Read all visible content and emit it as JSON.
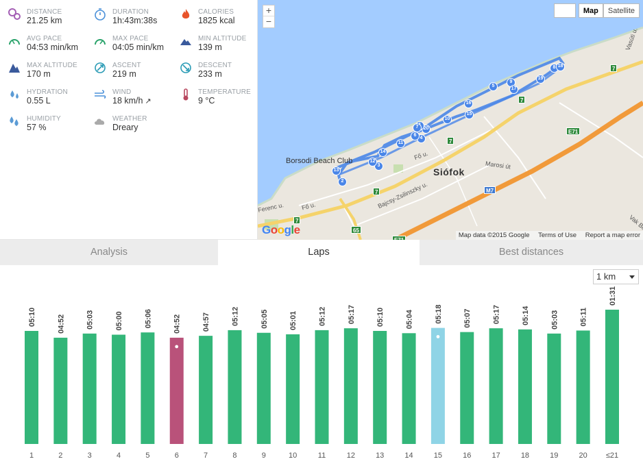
{
  "stats": [
    {
      "label": "DISTANCE",
      "value": "21.25 km",
      "icon": "distance-pin-icon",
      "color": "#a45fb5"
    },
    {
      "label": "DURATION",
      "value": "1h:43m:38s",
      "icon": "stopwatch-icon",
      "color": "#4a90d9"
    },
    {
      "label": "CALORIES",
      "value": "1825 kcal",
      "icon": "flame-icon",
      "color": "#e8542b"
    },
    {
      "label": "AVG PACE",
      "value": "04:53 min/km",
      "icon": "gauge-icon",
      "color": "#2aa36b"
    },
    {
      "label": "MAX PACE",
      "value": "04:05 min/km",
      "icon": "gauge-max-icon",
      "color": "#2aa36b"
    },
    {
      "label": "MIN ALTITUDE",
      "value": "139 m",
      "icon": "mountain-low-icon",
      "color": "#3a5a9c"
    },
    {
      "label": "MAX ALTITUDE",
      "value": "170 m",
      "icon": "mountain-high-icon",
      "color": "#3a5a9c"
    },
    {
      "label": "ASCENT",
      "value": "219 m",
      "icon": "ascent-icon",
      "color": "#2a9bb5"
    },
    {
      "label": "DESCENT",
      "value": "233 m",
      "icon": "descent-icon",
      "color": "#2a9bb5"
    },
    {
      "label": "HYDRATION",
      "value": "0.55 L",
      "icon": "water-drops-icon",
      "color": "#5b9bd5"
    },
    {
      "label": "WIND",
      "value": "18 km/h",
      "icon": "wind-icon",
      "color": "#4a90d9"
    },
    {
      "label": "TEMPERATURE",
      "value": "9 °C",
      "icon": "thermometer-icon",
      "color": "#b8485f"
    },
    {
      "label": "HUMIDITY",
      "value": "57 %",
      "icon": "humidity-drops-icon",
      "color": "#5b9bd5"
    },
    {
      "label": "WEATHER",
      "value": "Dreary",
      "icon": "cloud-icon",
      "color": "#aaaaaa"
    }
  ],
  "map": {
    "zoom_in": "+",
    "zoom_out": "−",
    "type_map": "Map",
    "type_satellite": "Satellite",
    "attribution": "Map data ©2015 Google",
    "terms": "Terms of Use",
    "report": "Report a map error",
    "logo": "Google",
    "city": "Siófok",
    "beach_club": "Borsodi Beach Club",
    "streets": [
      "Fő u.",
      "Fő u.",
      "Ferenc u.",
      "Bajcsy-Zsilinszky u.",
      "Marosi út",
      "Vasúti u.",
      "Vak Bo"
    ],
    "road_shields": [
      "7",
      "7",
      "7",
      "7",
      "7",
      "E71",
      "M7",
      "65",
      "E71"
    ],
    "markers": [
      "2",
      "3",
      "12",
      "13",
      "14",
      "11",
      "20",
      "4",
      "10",
      "15",
      "16",
      "5",
      "9",
      "17",
      "19",
      "8",
      "18",
      "1",
      "6",
      "7"
    ]
  },
  "tabs": [
    {
      "label": "Analysis",
      "active": false
    },
    {
      "label": "Laps",
      "active": true
    },
    {
      "label": "Best distances",
      "active": false
    }
  ],
  "unit_select": "1 km",
  "chart_data": {
    "type": "bar",
    "categories": [
      "1",
      "2",
      "3",
      "4",
      "5",
      "6",
      "7",
      "8",
      "9",
      "10",
      "11",
      "12",
      "13",
      "14",
      "15",
      "16",
      "17",
      "18",
      "19",
      "20",
      "≤21"
    ],
    "labels": [
      "05:10",
      "04:52",
      "05:03",
      "05:00",
      "05:06",
      "04:52",
      "04:57",
      "05:12",
      "05:05",
      "05:01",
      "05:12",
      "05:17",
      "05:10",
      "05:04",
      "05:18",
      "05:07",
      "05:17",
      "05:14",
      "05:03",
      "05:11",
      "01:31"
    ],
    "values_seconds": [
      310,
      292,
      303,
      300,
      306,
      292,
      297,
      312,
      305,
      301,
      312,
      317,
      310,
      304,
      318,
      307,
      317,
      314,
      303,
      311,
      91
    ],
    "fastest_index": 5,
    "slowest_index": 14,
    "colors": {
      "default": "#33b679",
      "fastest": "#b9527a",
      "slowest": "#8fd4e6",
      "axis_text": "#555555",
      "label_text": "#444444"
    }
  }
}
